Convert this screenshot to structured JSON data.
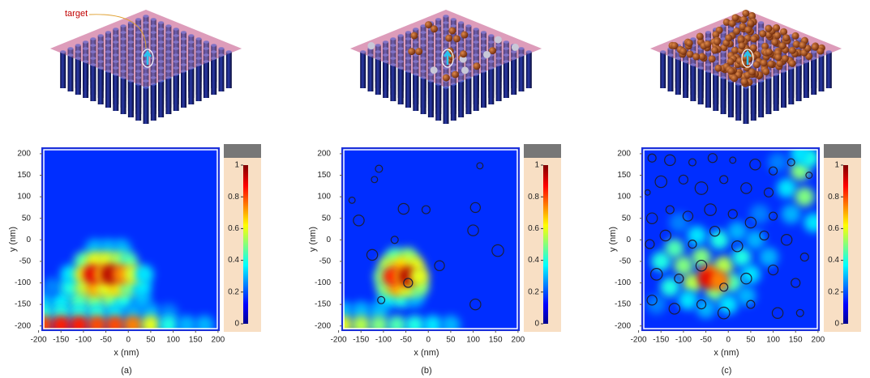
{
  "chart_data": {
    "type": "heatmap",
    "xlabel": "x (nm)",
    "ylabel": "y (nm)",
    "xlim": [
      -192,
      202
    ],
    "ylim": [
      -210,
      213
    ],
    "xticks": [
      -200,
      -150,
      -100,
      -50,
      0,
      50,
      100,
      150,
      200
    ],
    "yticks": [
      -200,
      -150,
      -100,
      -50,
      0,
      50,
      100,
      150,
      200
    ],
    "clim": [
      0,
      1
    ],
    "cticks": [
      1,
      0.8,
      0.6,
      0.4,
      0.2,
      0
    ],
    "colormap": "jet",
    "panels": [
      {
        "label": "(a)",
        "annotation": "target",
        "hotspots": [
          {
            "x": -75,
            "y": -20,
            "value": 0.3
          },
          {
            "x": -45,
            "y": -20,
            "value": 0.3
          },
          {
            "x": -15,
            "y": -20,
            "value": 0.3
          },
          {
            "x": -100,
            "y": -50,
            "value": 0.45
          },
          {
            "x": -75,
            "y": -50,
            "value": 0.6
          },
          {
            "x": -50,
            "y": -50,
            "value": 0.6
          },
          {
            "x": -25,
            "y": -50,
            "value": 0.55
          },
          {
            "x": 0,
            "y": -50,
            "value": 0.45
          },
          {
            "x": -190,
            "y": -140,
            "value": 0.3
          },
          {
            "x": -150,
            "y": -140,
            "value": 0.35
          },
          {
            "x": -110,
            "y": -140,
            "value": 0.45
          },
          {
            "x": -75,
            "y": -140,
            "value": 0.5
          },
          {
            "x": -40,
            "y": -140,
            "value": 0.5
          },
          {
            "x": -10,
            "y": -140,
            "value": 0.4
          },
          {
            "x": 30,
            "y": -140,
            "value": 0.3
          },
          {
            "x": -170,
            "y": -110,
            "value": 0.25
          },
          {
            "x": -130,
            "y": -110,
            "value": 0.4
          },
          {
            "x": -100,
            "y": -110,
            "value": 0.55
          },
          {
            "x": -75,
            "y": -110,
            "value": 0.7
          },
          {
            "x": -50,
            "y": -110,
            "value": 0.6
          },
          {
            "x": -25,
            "y": -110,
            "value": 0.65
          },
          {
            "x": 0,
            "y": -110,
            "value": 0.5
          },
          {
            "x": 30,
            "y": -110,
            "value": 0.35
          },
          {
            "x": -130,
            "y": -80,
            "value": 0.35
          },
          {
            "x": -100,
            "y": -80,
            "value": 0.6
          },
          {
            "x": -80,
            "y": -80,
            "value": 0.9
          },
          {
            "x": -55,
            "y": -80,
            "value": 0.7
          },
          {
            "x": -40,
            "y": -80,
            "value": 0.95
          },
          {
            "x": -15,
            "y": -80,
            "value": 0.75
          },
          {
            "x": 10,
            "y": -80,
            "value": 0.6
          },
          {
            "x": 35,
            "y": -80,
            "value": 0.35
          },
          {
            "x": -190,
            "y": -170,
            "value": 0.4
          },
          {
            "x": -150,
            "y": -170,
            "value": 0.4
          },
          {
            "x": -110,
            "y": -170,
            "value": 0.4
          },
          {
            "x": -70,
            "y": -170,
            "value": 0.4
          },
          {
            "x": -30,
            "y": -170,
            "value": 0.35
          },
          {
            "x": 10,
            "y": -170,
            "value": 0.3
          },
          {
            "x": 50,
            "y": -170,
            "value": 0.3
          },
          {
            "x": 90,
            "y": -170,
            "value": 0.25
          },
          {
            "x": -190,
            "y": -198,
            "value": 0.8
          },
          {
            "x": -150,
            "y": -198,
            "value": 0.85
          },
          {
            "x": -110,
            "y": -198,
            "value": 0.85
          },
          {
            "x": -70,
            "y": -198,
            "value": 0.8
          },
          {
            "x": -30,
            "y": -198,
            "value": 0.8
          },
          {
            "x": 10,
            "y": -198,
            "value": 0.75
          },
          {
            "x": 50,
            "y": -198,
            "value": 0.6
          },
          {
            "x": 90,
            "y": -198,
            "value": 0.4
          },
          {
            "x": 130,
            "y": -198,
            "value": 0.3
          },
          {
            "x": 170,
            "y": -198,
            "value": 0.3
          }
        ]
      },
      {
        "label": "(b)",
        "hotspots": [
          {
            "x": -190,
            "y": -165,
            "value": 0.3
          },
          {
            "x": -150,
            "y": -165,
            "value": 0.3
          },
          {
            "x": -110,
            "y": -165,
            "value": 0.3
          },
          {
            "x": -90,
            "y": -135,
            "value": 0.35
          },
          {
            "x": -60,
            "y": -135,
            "value": 0.4
          },
          {
            "x": -30,
            "y": -135,
            "value": 0.3
          },
          {
            "x": -75,
            "y": -40,
            "value": 0.45
          },
          {
            "x": -45,
            "y": -40,
            "value": 0.5
          },
          {
            "x": -90,
            "y": -60,
            "value": 0.55
          },
          {
            "x": -60,
            "y": -60,
            "value": 0.65
          },
          {
            "x": -30,
            "y": -60,
            "value": 0.6
          },
          {
            "x": -95,
            "y": -110,
            "value": 0.5
          },
          {
            "x": -70,
            "y": -110,
            "value": 0.7
          },
          {
            "x": -45,
            "y": -110,
            "value": 0.6
          },
          {
            "x": -20,
            "y": -110,
            "value": 0.5
          },
          {
            "x": -100,
            "y": -85,
            "value": 0.5
          },
          {
            "x": -80,
            "y": -85,
            "value": 0.85
          },
          {
            "x": -55,
            "y": -85,
            "value": 0.7
          },
          {
            "x": -45,
            "y": -85,
            "value": 0.95
          },
          {
            "x": -20,
            "y": -85,
            "value": 0.6
          },
          {
            "x": -190,
            "y": -198,
            "value": 0.6
          },
          {
            "x": -150,
            "y": -198,
            "value": 0.55
          },
          {
            "x": -110,
            "y": -198,
            "value": 0.5
          },
          {
            "x": -70,
            "y": -198,
            "value": 0.45
          },
          {
            "x": -30,
            "y": -198,
            "value": 0.4
          },
          {
            "x": 10,
            "y": -198,
            "value": 0.35
          },
          {
            "x": 50,
            "y": -198,
            "value": 0.3
          }
        ],
        "scatterers": [
          {
            "x": -110,
            "y": 165,
            "r": 8
          },
          {
            "x": -120,
            "y": 140,
            "r": 7
          },
          {
            "x": 115,
            "y": 172,
            "r": 7
          },
          {
            "x": -170,
            "y": 92,
            "r": 7
          },
          {
            "x": -155,
            "y": 45,
            "r": 12
          },
          {
            "x": -55,
            "y": 72,
            "r": 12
          },
          {
            "x": -5,
            "y": 70,
            "r": 9
          },
          {
            "x": 105,
            "y": 75,
            "r": 11
          },
          {
            "x": 100,
            "y": 22,
            "r": 12
          },
          {
            "x": -75,
            "y": 0,
            "r": 8
          },
          {
            "x": -125,
            "y": -35,
            "r": 12
          },
          {
            "x": 25,
            "y": -60,
            "r": 11
          },
          {
            "x": 155,
            "y": -25,
            "r": 13
          },
          {
            "x": -105,
            "y": -140,
            "r": 8
          },
          {
            "x": 105,
            "y": -150,
            "r": 12
          },
          {
            "x": -45,
            "y": -100,
            "r": 10
          }
        ]
      },
      {
        "label": "(c)",
        "hotspots": [
          {
            "x": -160,
            "y": -150,
            "value": 0.25
          },
          {
            "x": -110,
            "y": 40,
            "value": 0.25
          },
          {
            "x": 70,
            "y": 60,
            "value": 0.25
          },
          {
            "x": 110,
            "y": 180,
            "value": 0.25
          },
          {
            "x": -150,
            "y": -50,
            "value": 0.4
          },
          {
            "x": -120,
            "y": -20,
            "value": 0.45
          },
          {
            "x": -100,
            "y": -60,
            "value": 0.5
          },
          {
            "x": -80,
            "y": -100,
            "value": 0.55
          },
          {
            "x": -60,
            "y": -40,
            "value": 0.5
          },
          {
            "x": -40,
            "y": -80,
            "value": 0.7
          },
          {
            "x": -30,
            "y": -120,
            "value": 0.5
          },
          {
            "x": -10,
            "y": -60,
            "value": 0.55
          },
          {
            "x": 10,
            "y": -100,
            "value": 0.45
          },
          {
            "x": 30,
            "y": -40,
            "value": 0.4
          },
          {
            "x": 50,
            "y": -80,
            "value": 0.35
          },
          {
            "x": -130,
            "y": -110,
            "value": 0.4
          },
          {
            "x": -90,
            "y": -140,
            "value": 0.35
          },
          {
            "x": -50,
            "y": -160,
            "value": 0.3
          },
          {
            "x": 0,
            "y": -150,
            "value": 0.35
          },
          {
            "x": 40,
            "y": -130,
            "value": 0.3
          },
          {
            "x": -70,
            "y": 10,
            "value": 0.35
          },
          {
            "x": -20,
            "y": 0,
            "value": 0.4
          },
          {
            "x": 20,
            "y": 20,
            "value": 0.3
          },
          {
            "x": 60,
            "y": 0,
            "value": 0.3
          },
          {
            "x": 90,
            "y": -40,
            "value": 0.3
          },
          {
            "x": 130,
            "y": 120,
            "value": 0.35
          },
          {
            "x": 140,
            "y": 60,
            "value": 0.3
          },
          {
            "x": 190,
            "y": 40,
            "value": 0.35
          },
          {
            "x": 160,
            "y": 160,
            "value": 0.5
          },
          {
            "x": 180,
            "y": 190,
            "value": 0.4
          },
          {
            "x": 170,
            "y": 100,
            "value": 0.5
          },
          {
            "x": 160,
            "y": 200,
            "value": 0.35
          },
          {
            "x": -45,
            "y": -90,
            "value": 0.9
          },
          {
            "x": -20,
            "y": -95,
            "value": 0.75
          }
        ],
        "scatterers": [
          {
            "x": -170,
            "y": 190,
            "r": 9
          },
          {
            "x": -130,
            "y": 185,
            "r": 12
          },
          {
            "x": -80,
            "y": 180,
            "r": 8
          },
          {
            "x": -35,
            "y": 190,
            "r": 10
          },
          {
            "x": 10,
            "y": 185,
            "r": 7
          },
          {
            "x": 60,
            "y": 175,
            "r": 12
          },
          {
            "x": 100,
            "y": 160,
            "r": 9
          },
          {
            "x": 140,
            "y": 180,
            "r": 8
          },
          {
            "x": -180,
            "y": 110,
            "r": 6
          },
          {
            "x": -150,
            "y": 135,
            "r": 13
          },
          {
            "x": -100,
            "y": 140,
            "r": 10
          },
          {
            "x": -60,
            "y": 120,
            "r": 14
          },
          {
            "x": -10,
            "y": 140,
            "r": 9
          },
          {
            "x": 40,
            "y": 120,
            "r": 12
          },
          {
            "x": 90,
            "y": 110,
            "r": 10
          },
          {
            "x": -170,
            "y": 50,
            "r": 12
          },
          {
            "x": -130,
            "y": 70,
            "r": 9
          },
          {
            "x": -90,
            "y": 55,
            "r": 11
          },
          {
            "x": -40,
            "y": 70,
            "r": 13
          },
          {
            "x": 10,
            "y": 60,
            "r": 10
          },
          {
            "x": 50,
            "y": 40,
            "r": 12
          },
          {
            "x": 100,
            "y": 55,
            "r": 9
          },
          {
            "x": -175,
            "y": -10,
            "r": 10
          },
          {
            "x": -140,
            "y": 10,
            "r": 12
          },
          {
            "x": -80,
            "y": -10,
            "r": 9
          },
          {
            "x": -30,
            "y": 20,
            "r": 11
          },
          {
            "x": 20,
            "y": -15,
            "r": 12
          },
          {
            "x": 80,
            "y": 10,
            "r": 10
          },
          {
            "x": 130,
            "y": 0,
            "r": 12
          },
          {
            "x": 170,
            "y": -40,
            "r": 9
          },
          {
            "x": -160,
            "y": -80,
            "r": 13
          },
          {
            "x": -110,
            "y": -90,
            "r": 10
          },
          {
            "x": -60,
            "y": -60,
            "r": 12
          },
          {
            "x": -10,
            "y": -110,
            "r": 9
          },
          {
            "x": 40,
            "y": -90,
            "r": 12
          },
          {
            "x": 100,
            "y": -70,
            "r": 11
          },
          {
            "x": 150,
            "y": -100,
            "r": 10
          },
          {
            "x": -170,
            "y": -140,
            "r": 11
          },
          {
            "x": -120,
            "y": -160,
            "r": 12
          },
          {
            "x": -60,
            "y": -150,
            "r": 10
          },
          {
            "x": -10,
            "y": -170,
            "r": 13
          },
          {
            "x": 50,
            "y": -150,
            "r": 9
          },
          {
            "x": 110,
            "y": -170,
            "r": 12
          },
          {
            "x": 160,
            "y": -170,
            "r": 8
          },
          {
            "x": 180,
            "y": 150,
            "r": 7
          }
        ]
      }
    ]
  }
}
